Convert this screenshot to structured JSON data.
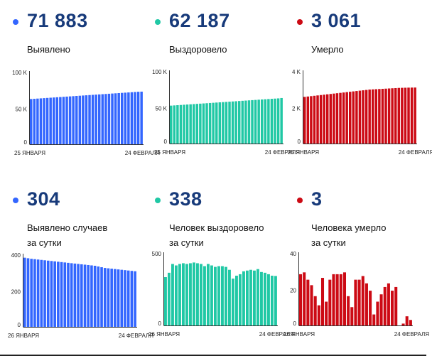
{
  "colors": {
    "blue": "#3366ff",
    "green": "#20c8a5",
    "red": "#cc0a14",
    "number": "#173a7a",
    "axis": "#333333"
  },
  "panels": [
    {
      "number": "71 883",
      "label_lines": [
        "Выявлено"
      ],
      "color": "blue"
    },
    {
      "number": "62 187",
      "label_lines": [
        "Выздоровело"
      ],
      "color": "green"
    },
    {
      "number": "3 061",
      "label_lines": [
        "Умерло"
      ],
      "color": "red"
    },
    {
      "number": "304",
      "label_lines": [
        "Выявлено случаев",
        "за сутки"
      ],
      "color": "blue"
    },
    {
      "number": "338",
      "label_lines": [
        "Человек выздоровело",
        "за сутки"
      ],
      "color": "green"
    },
    {
      "number": "3",
      "label_lines": [
        "Человека умерло",
        "за сутки"
      ],
      "color": "red"
    }
  ],
  "chart_data": [
    {
      "type": "bar",
      "title": "Выявлено",
      "ylim": [
        0,
        100000
      ],
      "yticks": [
        {
          "v": 0,
          "label": "0"
        },
        {
          "v": 50000,
          "label": "50 K"
        },
        {
          "v": 100000,
          "label": "100 K"
        }
      ],
      "date_labels": [
        "25 ЯНВАРЯ",
        "24 ФЕВРАЛЯ"
      ],
      "series_color": "blue",
      "values": [
        61800,
        62100,
        62400,
        62700,
        63000,
        63300,
        63600,
        63900,
        64200,
        64500,
        64800,
        65100,
        65400,
        65700,
        66000,
        66300,
        66600,
        66900,
        67200,
        67500,
        67800,
        68100,
        68400,
        68700,
        69000,
        69300,
        69600,
        69900,
        70200,
        70500,
        70800,
        71100,
        71400,
        71700,
        71883
      ]
    },
    {
      "type": "bar",
      "title": "Выздоровело",
      "ylim": [
        0,
        100000
      ],
      "yticks": [
        {
          "v": 0,
          "label": "0"
        },
        {
          "v": 50000,
          "label": "50 K"
        },
        {
          "v": 100000,
          "label": "100 K"
        }
      ],
      "date_labels": [
        "25 ЯНВАРЯ",
        "24 ФЕВРАЛЯ"
      ],
      "series_color": "green",
      "values": [
        51800,
        52100,
        52400,
        52700,
        53000,
        53300,
        53600,
        53900,
        54200,
        54500,
        54800,
        55100,
        55400,
        55700,
        56000,
        56300,
        56600,
        56900,
        57200,
        57500,
        57800,
        58100,
        58400,
        58700,
        59000,
        59300,
        59600,
        59900,
        60200,
        60500,
        60800,
        61100,
        61400,
        61700,
        62187
      ]
    },
    {
      "type": "bar",
      "title": "Умерло",
      "ylim": [
        0,
        4000
      ],
      "yticks": [
        {
          "v": 0,
          "label": "0"
        },
        {
          "v": 2000,
          "label": "2 K"
        },
        {
          "v": 4000,
          "label": "4 K"
        }
      ],
      "date_labels": [
        "25 ЯНВАРЯ",
        "24 ФЕВРАЛЯ"
      ],
      "series_color": "red",
      "values": [
        2550,
        2570,
        2590,
        2610,
        2630,
        2650,
        2670,
        2690,
        2710,
        2730,
        2750,
        2770,
        2790,
        2810,
        2830,
        2850,
        2870,
        2890,
        2910,
        2930,
        2950,
        2960,
        2970,
        2980,
        2990,
        3000,
        3010,
        3020,
        3030,
        3040,
        3045,
        3050,
        3055,
        3058,
        3061
      ]
    },
    {
      "type": "bar",
      "title": "Выявлено случаев за сутки",
      "ylim": [
        0,
        400
      ],
      "yticks": [
        {
          "v": 0,
          "label": "0"
        },
        {
          "v": 200,
          "label": "200"
        },
        {
          "v": 400,
          "label": "400"
        }
      ],
      "date_labels": [
        "26 ЯНВАРЯ",
        "24 ФЕВРАЛЯ"
      ],
      "series_color": "blue",
      "values": [
        378,
        375,
        372,
        370,
        368,
        366,
        364,
        362,
        360,
        358,
        356,
        354,
        352,
        350,
        348,
        346,
        344,
        342,
        340,
        338,
        336,
        334,
        330,
        326,
        322,
        320,
        318,
        316,
        314,
        312,
        310,
        308,
        306,
        304
      ]
    },
    {
      "type": "bar",
      "title": "Человек выздоровело за сутки",
      "ylim": [
        0,
        500
      ],
      "yticks": [
        {
          "v": 0,
          "label": "0"
        },
        {
          "v": 500,
          "label": "500"
        }
      ],
      "date_labels": [
        "26 ЯНВАРЯ",
        "24 ФЕВРАЛЯ"
      ],
      "series_color": "green",
      "values": [
        330,
        360,
        420,
        410,
        420,
        425,
        420,
        425,
        430,
        425,
        420,
        405,
        420,
        410,
        400,
        405,
        405,
        400,
        380,
        320,
        340,
        350,
        370,
        375,
        380,
        375,
        385,
        365,
        360,
        350,
        340,
        338
      ]
    },
    {
      "type": "bar",
      "title": "Человека умерло за сутки",
      "ylim": [
        0,
        40
      ],
      "yticks": [
        {
          "v": 0,
          "label": "0"
        },
        {
          "v": 20,
          "label": "20"
        },
        {
          "v": 40,
          "label": "40"
        }
      ],
      "date_labels": [
        "26 ЯНВАРЯ",
        "24 ФЕВРАЛЯ"
      ],
      "series_color": "red",
      "values": [
        28,
        29,
        25,
        22,
        16,
        11,
        26,
        13,
        25,
        28,
        28,
        28,
        29,
        16,
        10,
        25,
        25,
        27,
        23,
        19,
        6,
        13,
        17,
        21,
        23,
        19,
        21,
        0,
        1,
        5,
        3
      ]
    }
  ]
}
